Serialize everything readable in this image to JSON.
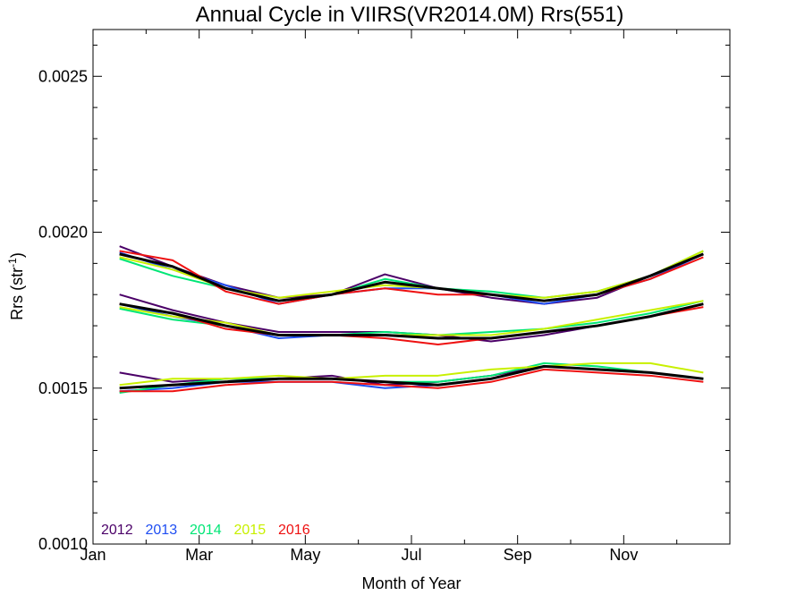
{
  "chart_data": {
    "type": "line",
    "title": "Annual Cycle in VIIRS(VR2014.0M) Rrs(551)",
    "xlabel": "Month of Year",
    "ylabel": {
      "main": "Rrs (str",
      "sup": "-1",
      "close": ")"
    },
    "xlim": [
      1,
      13
    ],
    "ylim": [
      0.001,
      0.00265
    ],
    "x_ticks": [
      {
        "value": 1,
        "label": "Jan"
      },
      {
        "value": 3,
        "label": "Mar"
      },
      {
        "value": 5,
        "label": "May"
      },
      {
        "value": 7,
        "label": "Jul"
      },
      {
        "value": 9,
        "label": "Sep"
      },
      {
        "value": 11,
        "label": "Nov"
      }
    ],
    "y_ticks": [
      {
        "value": 0.001,
        "label": "0.0010"
      },
      {
        "value": 0.0015,
        "label": "0.0015"
      },
      {
        "value": 0.002,
        "label": "0.0020"
      },
      {
        "value": 0.0025,
        "label": "0.0025"
      }
    ],
    "x": [
      1.5,
      2.5,
      3.5,
      4.5,
      5.5,
      6.5,
      7.5,
      8.5,
      9.5,
      10.5,
      11.5,
      12.5
    ],
    "legend": [
      {
        "label": "2012",
        "color": "#4b0068"
      },
      {
        "label": "2013",
        "color": "#1f4ef2"
      },
      {
        "label": "2014",
        "color": "#00e676"
      },
      {
        "label": "2015",
        "color": "#c8f000"
      },
      {
        "label": "2016",
        "color": "#ee1111"
      }
    ],
    "series": [
      {
        "group": "upper",
        "year": "2012",
        "color": "#4b0068",
        "values": [
          0.001955,
          0.00189,
          0.00183,
          0.00179,
          0.0018,
          0.001865,
          0.00182,
          0.00179,
          0.00177,
          0.00179,
          0.00186,
          0.00193
        ]
      },
      {
        "group": "upper",
        "year": "2013",
        "color": "#1f4ef2",
        "values": [
          0.001935,
          0.00188,
          0.00183,
          0.00177,
          0.0018,
          0.00182,
          0.00182,
          0.0018,
          0.00177,
          0.0018,
          0.00185,
          0.00193
        ]
      },
      {
        "group": "upper",
        "year": "2014",
        "color": "#00e676",
        "values": [
          0.001915,
          0.00186,
          0.00182,
          0.00178,
          0.0018,
          0.00185,
          0.00182,
          0.00181,
          0.00179,
          0.00181,
          0.00186,
          0.00194
        ]
      },
      {
        "group": "upper",
        "year": "2015",
        "color": "#c8f000",
        "values": [
          0.00192,
          0.00188,
          0.00182,
          0.00179,
          0.00181,
          0.00183,
          0.00182,
          0.0018,
          0.00179,
          0.00181,
          0.00186,
          0.00194
        ]
      },
      {
        "group": "upper",
        "year": "2016",
        "color": "#ee1111",
        "values": [
          0.00194,
          0.00191,
          0.00181,
          0.00177,
          0.0018,
          0.00182,
          0.0018,
          0.0018,
          0.00178,
          0.0018,
          0.00185,
          0.00192
        ]
      },
      {
        "group": "upper",
        "year": "mean",
        "color": "#000000",
        "values": [
          0.00193,
          0.00189,
          0.00182,
          0.00178,
          0.0018,
          0.00184,
          0.00182,
          0.0018,
          0.00178,
          0.0018,
          0.00186,
          0.00193
        ]
      },
      {
        "group": "middle",
        "year": "2012",
        "color": "#4b0068",
        "values": [
          0.0018,
          0.00175,
          0.00171,
          0.00168,
          0.00168,
          0.00168,
          0.00167,
          0.00165,
          0.00167,
          0.0017,
          0.00173,
          0.00177
        ]
      },
      {
        "group": "middle",
        "year": "2013",
        "color": "#1f4ef2",
        "values": [
          0.00177,
          0.00173,
          0.0017,
          0.00166,
          0.00167,
          0.00167,
          0.00166,
          0.00166,
          0.00168,
          0.0017,
          0.00173,
          0.00177
        ]
      },
      {
        "group": "middle",
        "year": "2014",
        "color": "#00e676",
        "values": [
          0.001755,
          0.00172,
          0.0017,
          0.00167,
          0.00167,
          0.00168,
          0.00167,
          0.00168,
          0.00169,
          0.00171,
          0.00174,
          0.00178
        ]
      },
      {
        "group": "middle",
        "year": "2015",
        "color": "#c8f000",
        "values": [
          0.00176,
          0.00173,
          0.00171,
          0.00167,
          0.00167,
          0.00167,
          0.00167,
          0.00167,
          0.00169,
          0.00172,
          0.00175,
          0.00178
        ]
      },
      {
        "group": "middle",
        "year": "2016",
        "color": "#ee1111",
        "values": [
          0.00177,
          0.00174,
          0.00169,
          0.00167,
          0.00167,
          0.00166,
          0.00164,
          0.00166,
          0.00168,
          0.0017,
          0.00173,
          0.00176
        ]
      },
      {
        "group": "middle",
        "year": "mean",
        "color": "#000000",
        "values": [
          0.00177,
          0.00174,
          0.0017,
          0.00167,
          0.00167,
          0.00167,
          0.00166,
          0.00166,
          0.00168,
          0.0017,
          0.00173,
          0.00177
        ]
      },
      {
        "group": "lower",
        "year": "2012",
        "color": "#4b0068",
        "values": [
          0.00155,
          0.00152,
          0.00153,
          0.00153,
          0.00154,
          0.00151,
          0.00152,
          0.00154,
          0.00157,
          0.00156,
          0.00155,
          0.00153
        ]
      },
      {
        "group": "lower",
        "year": "2013",
        "color": "#1f4ef2",
        "values": [
          0.00149,
          0.0015,
          0.00152,
          0.00152,
          0.00152,
          0.0015,
          0.00151,
          0.00153,
          0.00157,
          0.00156,
          0.00155,
          0.00153
        ]
      },
      {
        "group": "lower",
        "year": "2014",
        "color": "#00e676",
        "values": [
          0.001485,
          0.00151,
          0.00153,
          0.00153,
          0.00153,
          0.00152,
          0.00152,
          0.00154,
          0.00158,
          0.00157,
          0.00155,
          0.00153
        ]
      },
      {
        "group": "lower",
        "year": "2015",
        "color": "#c8f000",
        "values": [
          0.00151,
          0.00153,
          0.00153,
          0.00154,
          0.00153,
          0.00154,
          0.00154,
          0.00156,
          0.00157,
          0.00158,
          0.00158,
          0.00155
        ]
      },
      {
        "group": "lower",
        "year": "2016",
        "color": "#ee1111",
        "values": [
          0.00149,
          0.00149,
          0.00151,
          0.00152,
          0.00152,
          0.00151,
          0.0015,
          0.00152,
          0.00156,
          0.00155,
          0.00154,
          0.00152
        ]
      },
      {
        "group": "lower",
        "year": "mean",
        "color": "#000000",
        "values": [
          0.0015,
          0.00151,
          0.00152,
          0.00153,
          0.00153,
          0.00152,
          0.00151,
          0.00153,
          0.00157,
          0.00156,
          0.00155,
          0.00153
        ]
      }
    ]
  }
}
